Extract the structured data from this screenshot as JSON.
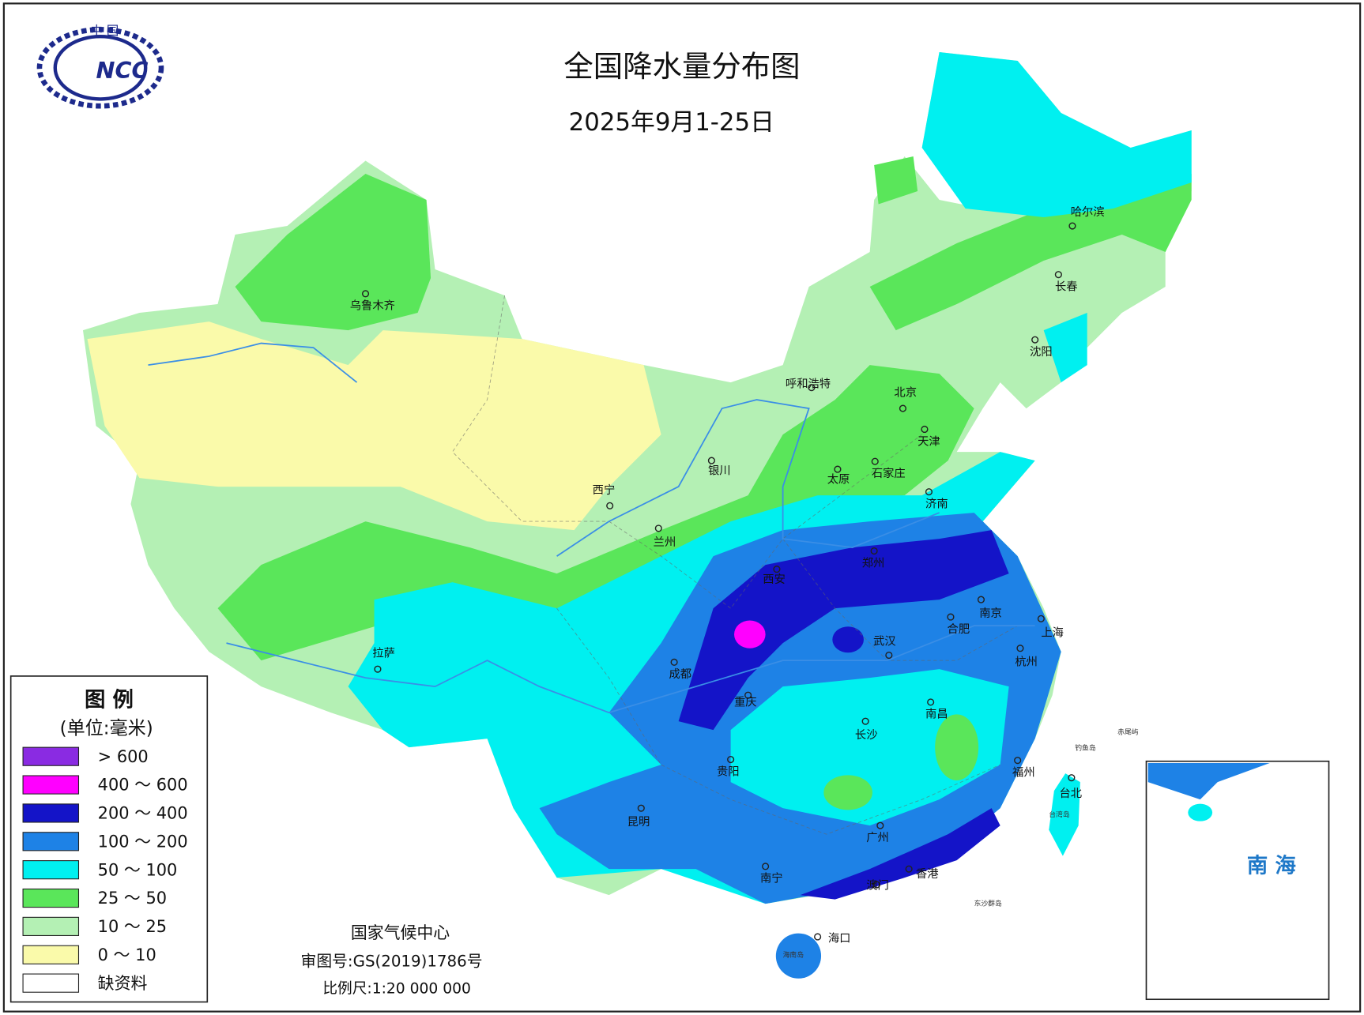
{
  "header": {
    "title": "全国降水量分布图",
    "date": "2025年9月1-25日",
    "logo_top": "中 国",
    "logo_text": "NCC"
  },
  "legend": {
    "title": "图 例",
    "unit": "(单位:毫米)",
    "items": [
      {
        "label": "> 600",
        "color": "#8a2be2"
      },
      {
        "label": "400 ～ 600",
        "color": "#ff00ff"
      },
      {
        "label": "200 ～ 400",
        "color": "#1414c8"
      },
      {
        "label": "100 ～ 200",
        "color": "#1e82e6"
      },
      {
        "label": "50 ～ 100",
        "color": "#00f0f0"
      },
      {
        "label": "25 ～ 50",
        "color": "#5ae65a"
      },
      {
        "label": "10 ～ 25",
        "color": "#b4f0b4"
      },
      {
        "label": "0 ～ 10",
        "color": "#fafaaa"
      },
      {
        "label": "缺资料",
        "color": "#ffffff"
      }
    ]
  },
  "cities": [
    "乌鲁木齐",
    "呼和浩特",
    "北京",
    "天津",
    "石家庄",
    "太原",
    "银川",
    "西宁",
    "兰州",
    "济南",
    "郑州",
    "西安",
    "南京",
    "合肥",
    "上海",
    "武汉",
    "杭州",
    "成都",
    "重庆",
    "南昌",
    "长沙",
    "贵阳",
    "福州",
    "台北",
    "昆明",
    "广州",
    "南宁",
    "香港",
    "澳门",
    "海口",
    "哈尔滨",
    "长春",
    "沈阳",
    "拉萨"
  ],
  "islands": [
    "台湾岛",
    "海南岛",
    "东沙群岛",
    "钓鱼岛",
    "赤尾屿"
  ],
  "inset": {
    "label": "南 海"
  },
  "footer": {
    "agency": "国家气候中心",
    "approval": "审图号:GS(2019)1786号",
    "scale": "比例尺:1:20 000 000"
  }
}
